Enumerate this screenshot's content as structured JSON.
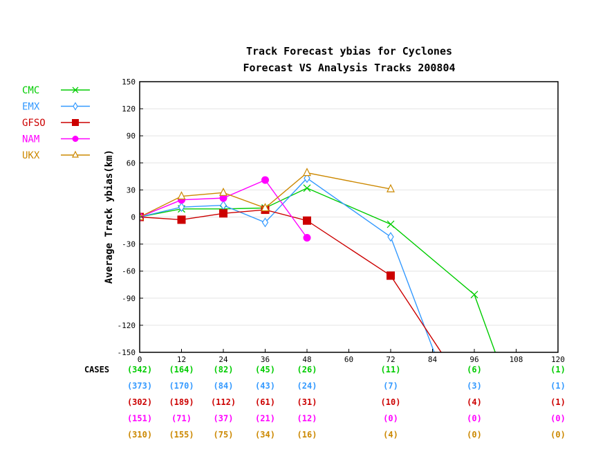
{
  "chart_data": {
    "type": "line",
    "title": "Track Forecast ybias for Cyclones",
    "subtitle": "Forecast VS Analysis Tracks 200804",
    "xlabel": "",
    "ylabel": "Average Track ybias(km)",
    "xlim": [
      0,
      120
    ],
    "ylim": [
      -150,
      150
    ],
    "x_ticks": [
      "0",
      "12",
      "24",
      "36",
      "48",
      "60",
      "72",
      "84",
      "96",
      "108",
      "120"
    ],
    "y_ticks": [
      "150",
      "120",
      "90",
      "60",
      "30",
      "0",
      "-30",
      "-60",
      "-90",
      "-120",
      "-150"
    ],
    "grid": true,
    "legend_position": "left",
    "cases_label": "CASES",
    "series": [
      {
        "name": "CMC",
        "color": "#00cc00",
        "marker": "x",
        "x": [
          0,
          12,
          24,
          36,
          48,
          72,
          96,
          102
        ],
        "y": [
          0,
          9,
          9,
          10,
          32,
          -8,
          -86,
          -150
        ],
        "cases": [
          "(342)",
          "(164)",
          "(82)",
          "(45)",
          "(26)",
          "(11)",
          "(6)",
          "(1)"
        ],
        "cases_x": [
          0,
          12,
          24,
          36,
          48,
          72,
          96,
          120
        ]
      },
      {
        "name": "EMX",
        "color": "#3399ff",
        "marker": "diamond",
        "x": [
          0,
          12,
          24,
          36,
          48,
          72,
          84.5
        ],
        "y": [
          0,
          11,
          13,
          -6,
          43,
          -22,
          -150
        ],
        "cases": [
          "(373)",
          "(170)",
          "(84)",
          "(43)",
          "(24)",
          "(7)",
          "(3)",
          "(1)"
        ],
        "cases_x": [
          0,
          12,
          24,
          36,
          48,
          72,
          96,
          120
        ]
      },
      {
        "name": "GFSO",
        "color": "#cc0000",
        "marker": "square",
        "x": [
          0,
          12,
          24,
          36,
          48,
          72,
          86.5
        ],
        "y": [
          0,
          -3,
          4,
          8,
          -4,
          -65,
          -150
        ],
        "cases": [
          "(302)",
          "(189)",
          "(112)",
          "(61)",
          "(31)",
          "(10)",
          "(4)",
          "(1)"
        ],
        "cases_x": [
          0,
          12,
          24,
          36,
          48,
          72,
          96,
          120
        ]
      },
      {
        "name": "NAM",
        "color": "#ff00ff",
        "marker": "circle",
        "x": [
          0,
          12,
          24,
          36,
          48
        ],
        "y": [
          0,
          19,
          21,
          41,
          -23
        ],
        "cases": [
          "(151)",
          "(71)",
          "(37)",
          "(21)",
          "(12)",
          "(0)",
          "(0)",
          "(0)"
        ],
        "cases_x": [
          0,
          12,
          24,
          36,
          48,
          72,
          96,
          120
        ]
      },
      {
        "name": "UKX",
        "color": "#cc8800",
        "marker": "triangle",
        "x": [
          0,
          12,
          24,
          36,
          48,
          72
        ],
        "y": [
          0,
          23,
          27,
          10,
          49,
          31
        ],
        "cases": [
          "(310)",
          "(155)",
          "(75)",
          "(34)",
          "(16)",
          "(4)",
          "(0)",
          "(0)"
        ],
        "cases_x": [
          0,
          12,
          24,
          36,
          48,
          72,
          96,
          120
        ]
      }
    ]
  }
}
